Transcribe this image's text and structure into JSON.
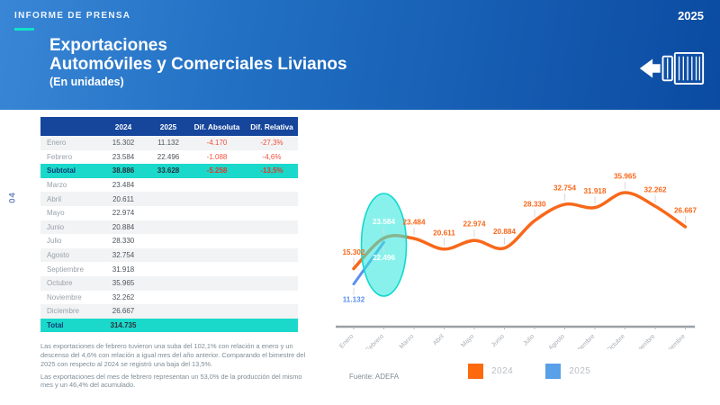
{
  "header": {
    "eyebrow": "INFORME DE PRENSA",
    "title_line1": "Exportaciones",
    "title_line2": "Automóviles y Comerciales Livianos",
    "subtitle": "(En unidades)",
    "year": "2025"
  },
  "page_number": "04",
  "icons": {
    "header_icon": "truck-container-export-left-arrow"
  },
  "table": {
    "columns": [
      "",
      "2024",
      "2025",
      "Dif. Absoluta",
      "Dif. Relativa"
    ],
    "rows": [
      {
        "label": "Enero",
        "v2024": "15.302",
        "v2025": "11.132",
        "dif_abs": "-4.170",
        "dif_rel": "-27,3%",
        "type": "data"
      },
      {
        "label": "Febrero",
        "v2024": "23.584",
        "v2025": "22.496",
        "dif_abs": "-1.088",
        "dif_rel": "-4,6%",
        "type": "data"
      },
      {
        "label": "Subtotal",
        "v2024": "38.886",
        "v2025": "33.628",
        "dif_abs": "-5.258",
        "dif_rel": "-13,5%",
        "type": "highlight"
      },
      {
        "label": "Marzo",
        "v2024": "23.484",
        "v2025": "",
        "dif_abs": "",
        "dif_rel": "",
        "type": "data"
      },
      {
        "label": "Abril",
        "v2024": "20.611",
        "v2025": "",
        "dif_abs": "",
        "dif_rel": "",
        "type": "data"
      },
      {
        "label": "Mayo",
        "v2024": "22.974",
        "v2025": "",
        "dif_abs": "",
        "dif_rel": "",
        "type": "data"
      },
      {
        "label": "Junio",
        "v2024": "20.884",
        "v2025": "",
        "dif_abs": "",
        "dif_rel": "",
        "type": "data"
      },
      {
        "label": "Julio",
        "v2024": "28.330",
        "v2025": "",
        "dif_abs": "",
        "dif_rel": "",
        "type": "data"
      },
      {
        "label": "Agosto",
        "v2024": "32.754",
        "v2025": "",
        "dif_abs": "",
        "dif_rel": "",
        "type": "data"
      },
      {
        "label": "Septiembre",
        "v2024": "31.918",
        "v2025": "",
        "dif_abs": "",
        "dif_rel": "",
        "type": "data"
      },
      {
        "label": "Octubre",
        "v2024": "35.965",
        "v2025": "",
        "dif_abs": "",
        "dif_rel": "",
        "type": "data"
      },
      {
        "label": "Noviembre",
        "v2024": "32.262",
        "v2025": "",
        "dif_abs": "",
        "dif_rel": "",
        "type": "data"
      },
      {
        "label": "Diciembre",
        "v2024": "26.667",
        "v2025": "",
        "dif_abs": "",
        "dif_rel": "",
        "type": "data"
      },
      {
        "label": "Total",
        "v2024": "314.735",
        "v2025": "",
        "dif_abs": "",
        "dif_rel": "",
        "type": "highlight"
      }
    ]
  },
  "notes": [
    "Las exportaciones de febrero tuvieron una suba del 102,1% con relación a enero y un descenso del 4,6% con relación a igual mes del año anterior. Comparando el bimestre del 2025 con respecto al 2024 se registró una baja del 13,5%.",
    "Las exportaciones del mes de febrero representan un 53,0% de la producción del mismo mes y un 46,4% del acumulado."
  ],
  "source": "Fuente: ADEFA",
  "legend": [
    {
      "label": "2024",
      "color": "#fd6a0e"
    },
    {
      "label": "2025",
      "color": "#58a0e8"
    }
  ],
  "chart_data": {
    "type": "line",
    "categories": [
      "Enero",
      "Febrero",
      "Marzo",
      "Abril",
      "Mayo",
      "Junio",
      "Julio",
      "Agosto",
      "Septiembre",
      "Octubre",
      "Noviembre",
      "Diciembre"
    ],
    "series": [
      {
        "name": "2024",
        "color": "#f8681a",
        "values": [
          15302,
          23584,
          23484,
          20611,
          22974,
          20884,
          28330,
          32754,
          31918,
          35965,
          32262,
          26667
        ],
        "labels": [
          "15.302",
          "23.584",
          "23.484",
          "20.611",
          "22.974",
          "20.884",
          "28.330",
          "32.754",
          "31.918",
          "35.965",
          "32.262",
          "26.667"
        ]
      },
      {
        "name": "2025",
        "color": "#5b8ff0",
        "values": [
          11132,
          22496
        ],
        "labels": [
          "11.132",
          "22.496"
        ]
      }
    ],
    "highlight": {
      "shape": "ellipse",
      "month_index": 1,
      "fill": "#3ae8de",
      "stroke": "#12d8d0"
    },
    "ylim": [
      9000,
      38000
    ],
    "grid": false,
    "legend_position": "bottom",
    "axis_color": "#9aa0a6",
    "label_color": "#a8aeb5"
  },
  "colors": {
    "accent_teal": "#1ad9cb",
    "table_header_bg": "#16459c",
    "negative_red": "#f0503c",
    "header_gradient_start": "#3a86d6",
    "header_gradient_end": "#0b4ba2"
  }
}
